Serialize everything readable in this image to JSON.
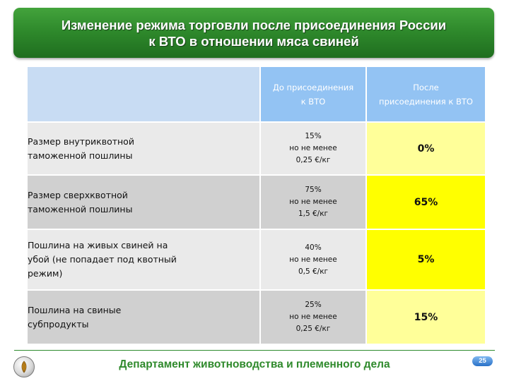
{
  "title": {
    "line1": "Изменение режима торговли после присоединения России",
    "line2": "к ВТО в отношении мяса свиней"
  },
  "table": {
    "headers": {
      "empty": "",
      "before": [
        "До присоединения",
        "к ВТО"
      ],
      "after": [
        "После",
        "присоединения к ВТО"
      ]
    },
    "rows": [
      {
        "label": [
          "Размер внутриквотной",
          "таможенной пошлины"
        ],
        "before": [
          "15%",
          "но не менее",
          "0,25 €/кг"
        ],
        "after": "0%"
      },
      {
        "label": [
          "Размер сверхквотной",
          "таможенной пошлины"
        ],
        "before": [
          "75%",
          "но не менее",
          "1,5 €/кг"
        ],
        "after": "65%"
      },
      {
        "label": [
          "Пошлина на живых свиней на",
          "убой (не попадает под квотный",
          "режим)"
        ],
        "before": [
          "40%",
          "но не менее",
          "0,5 €/кг"
        ],
        "after": "5%"
      },
      {
        "label": [
          "Пошлина на свиные",
          "субпродукты"
        ],
        "before": [
          "25%",
          "но не менее",
          "0,25 €/кг"
        ],
        "after": "15%"
      }
    ]
  },
  "footer": {
    "text": "Департамент животноводства и племенного дела",
    "page_number": "25"
  },
  "colors": {
    "banner_green": "#2f8a2c",
    "header_blue": "#93c3f3",
    "highlight_pale_yellow": "#ffff99",
    "highlight_yellow": "#ffff00"
  }
}
